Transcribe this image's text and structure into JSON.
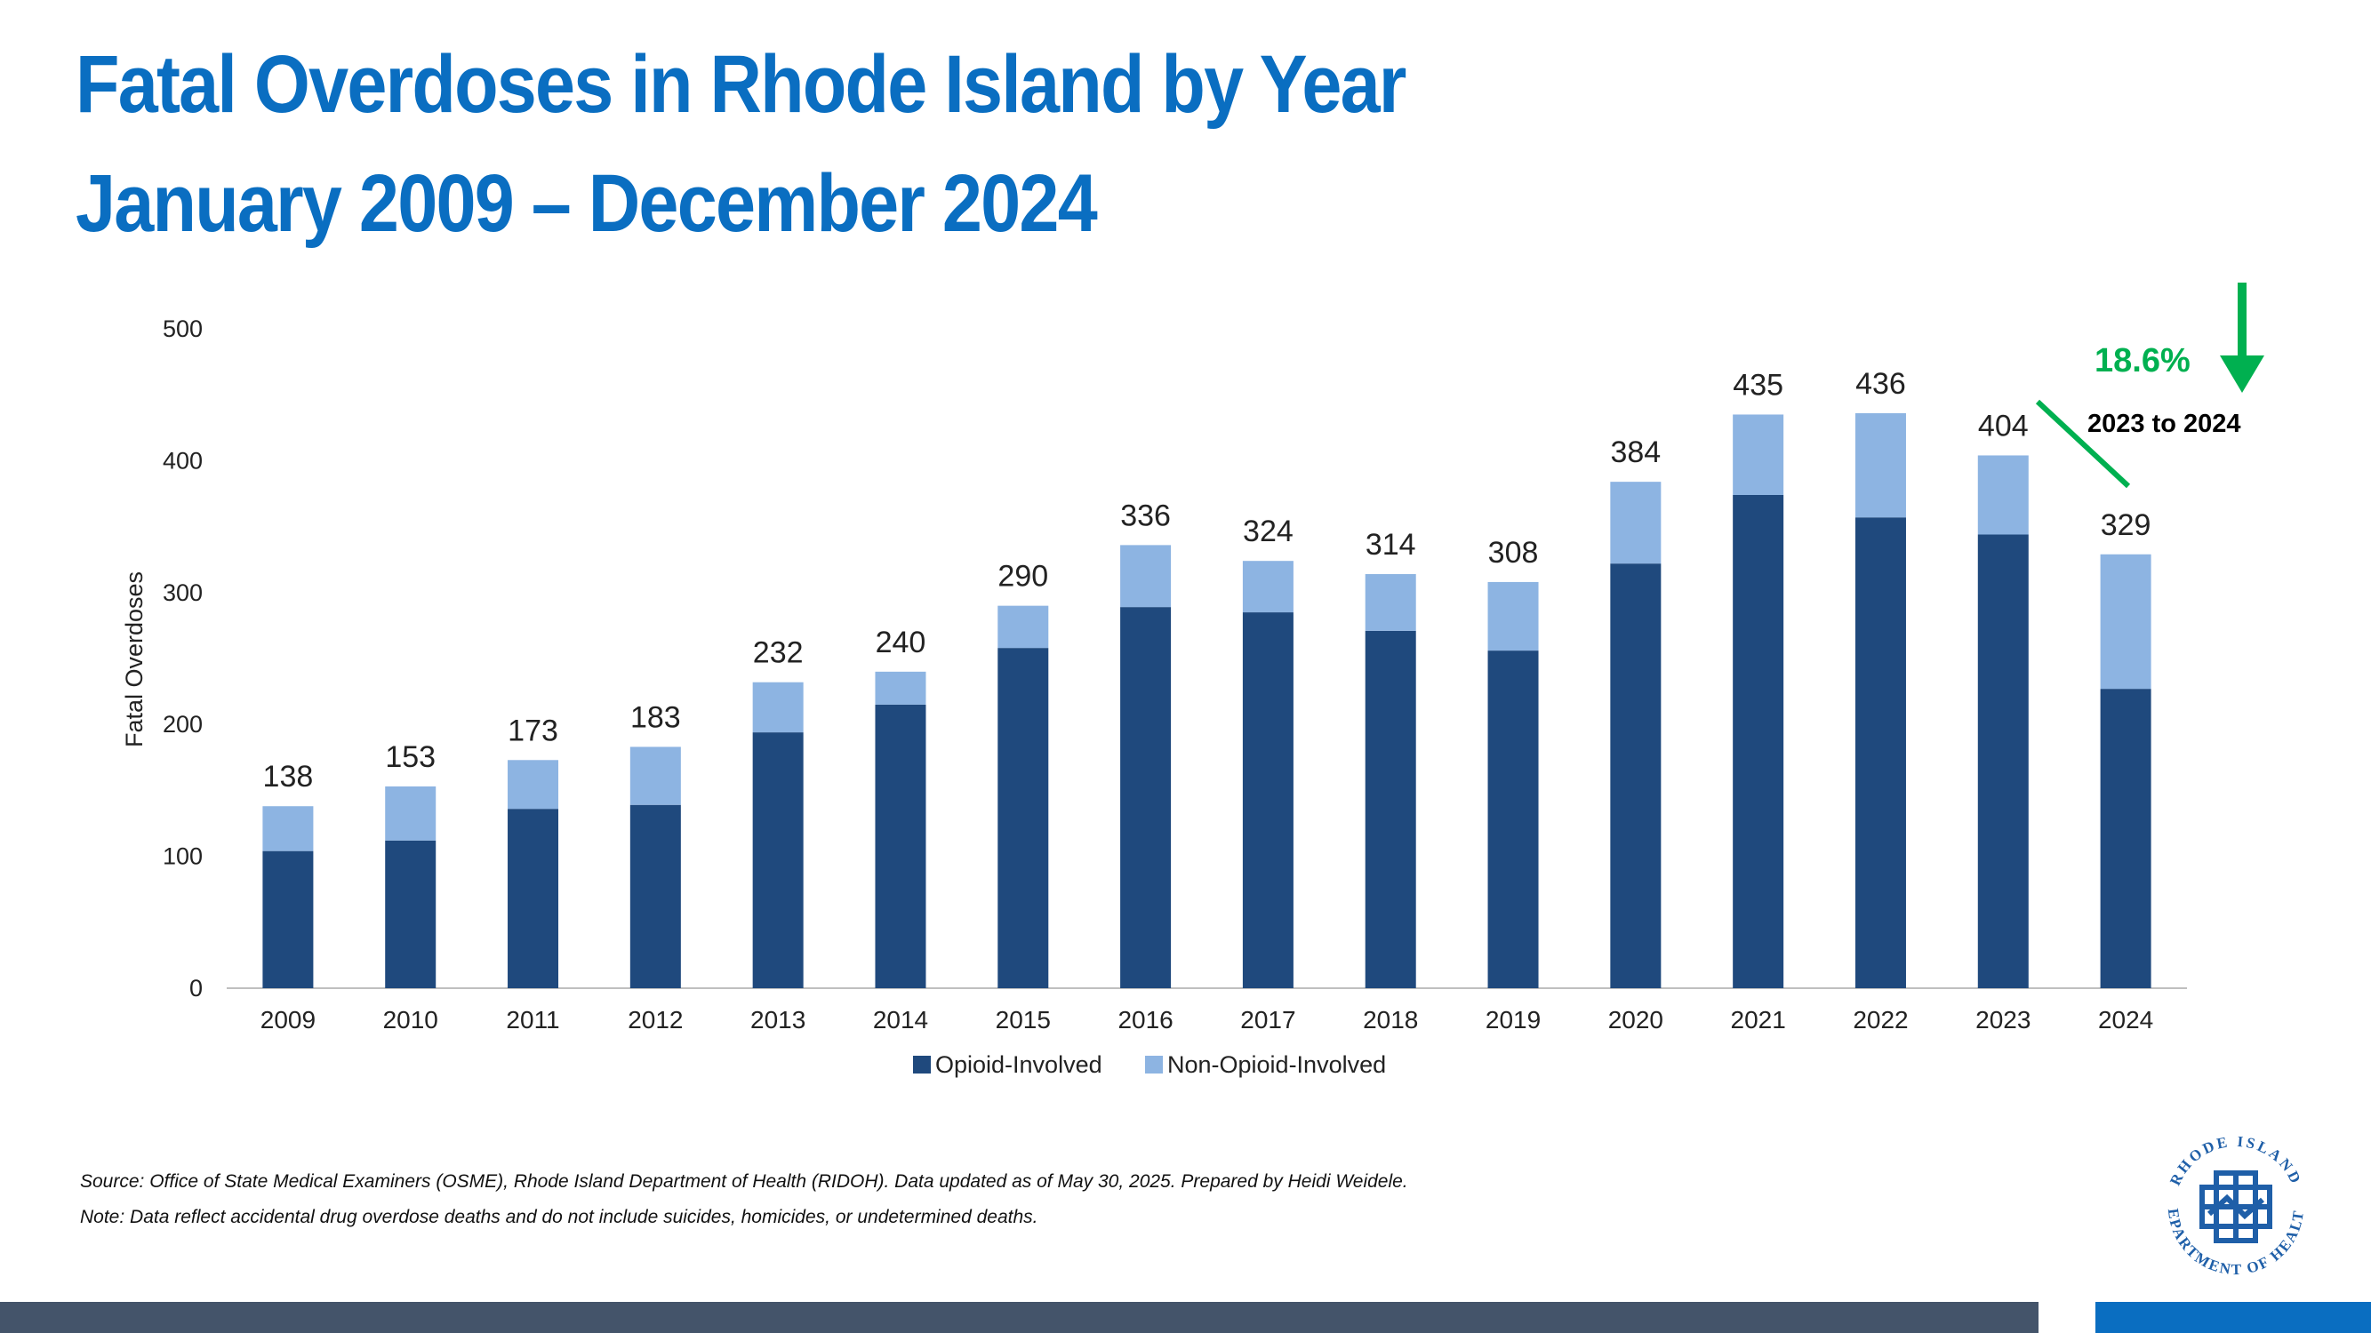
{
  "title": {
    "line1": "Fatal Overdoses in Rhode Island by Year",
    "line2": "January 2009 – December 2024"
  },
  "chart_data": {
    "type": "bar",
    "stacked": true,
    "categories": [
      "2009",
      "2010",
      "2011",
      "2012",
      "2013",
      "2014",
      "2015",
      "2016",
      "2017",
      "2018",
      "2019",
      "2020",
      "2021",
      "2022",
      "2023",
      "2024"
    ],
    "series": [
      {
        "name": "Opioid-Involved",
        "color": "#1f497d",
        "values": [
          104,
          112,
          136,
          139,
          194,
          215,
          258,
          289,
          285,
          271,
          256,
          322,
          374,
          357,
          344,
          227
        ]
      },
      {
        "name": "Non-Opioid-Involved",
        "color": "#8db4e2",
        "values": [
          34,
          41,
          37,
          44,
          38,
          25,
          32,
          47,
          39,
          43,
          52,
          62,
          61,
          79,
          60,
          102
        ]
      }
    ],
    "totals": [
      "138",
      "153",
      "173",
      "183",
      "232",
      "240",
      "290",
      "336",
      "324",
      "314",
      "308",
      "384",
      "435",
      "436",
      "404",
      "329"
    ],
    "ylabel": "Fatal Overdoses",
    "xlabel": "",
    "ylim": [
      0,
      500
    ],
    "yticks": [
      "0",
      "100",
      "200",
      "300",
      "400",
      "500"
    ],
    "legend_position": "bottom",
    "grid": false,
    "annotation": {
      "percent": "18.6%",
      "period": "2023 to 2024",
      "color": "#00b050"
    }
  },
  "source": "Source: Office of State Medical Examiners (OSME), Rhode Island Department of Health (RIDOH). Data updated as of May 30, 2025. Prepared by Heidi Weidele.",
  "note": "Note: Data reflect accidental drug overdose deaths and do not include suicides, homicides, or undetermined deaths.",
  "logo": {
    "top_text": "RHODE ISLAND",
    "bottom_text": "DEPARTMENT OF HEALTH",
    "color": "#1f5fa8"
  },
  "colors": {
    "title": "#0a6ec1",
    "footer_bar": "#44546a",
    "footer_accent": "#0a6ec1"
  }
}
